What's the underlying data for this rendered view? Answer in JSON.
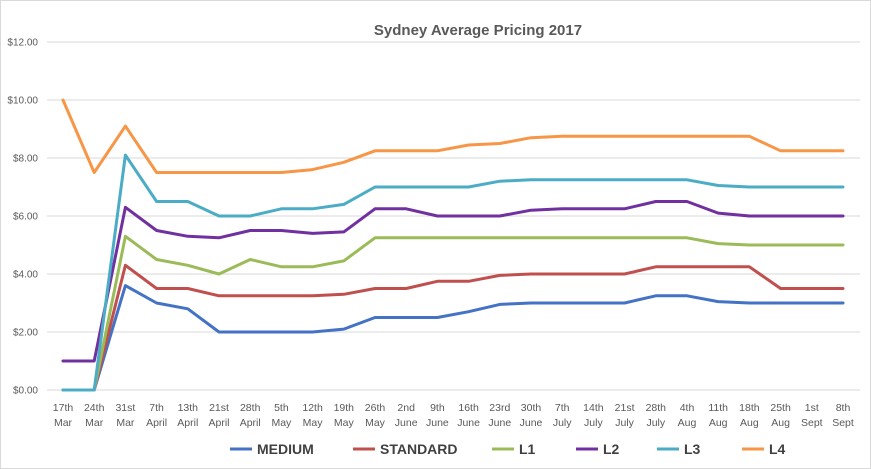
{
  "chart_data": {
    "type": "line",
    "title": "Sydney Average Pricing 2017",
    "xlabel": "",
    "ylabel": "",
    "ylim": [
      0,
      12
    ],
    "yticks": [
      "$0.00",
      "$2.00",
      "$4.00",
      "$6.00",
      "$8.00",
      "$10.00",
      "$12.00"
    ],
    "grid": true,
    "legend_position": "bottom",
    "categories": [
      [
        "17th",
        "Mar"
      ],
      [
        "24th",
        "Mar"
      ],
      [
        "31st",
        "Mar"
      ],
      [
        "7th",
        "April"
      ],
      [
        "13th",
        "April"
      ],
      [
        "21st",
        "April"
      ],
      [
        "28th",
        "April"
      ],
      [
        "5th",
        "May"
      ],
      [
        "12th",
        "May"
      ],
      [
        "19th",
        "May"
      ],
      [
        "26th",
        "May"
      ],
      [
        "2nd",
        "June"
      ],
      [
        "9th",
        "June"
      ],
      [
        "16th",
        "June"
      ],
      [
        "23rd",
        "June"
      ],
      [
        "30th",
        "June"
      ],
      [
        "7th",
        "July"
      ],
      [
        "14th",
        "July"
      ],
      [
        "21st",
        "July"
      ],
      [
        "28th",
        "July"
      ],
      [
        "4th",
        "Aug"
      ],
      [
        "11th",
        "Aug"
      ],
      [
        "18th",
        "Aug"
      ],
      [
        "25th",
        "Aug"
      ],
      [
        "1st",
        "Sept"
      ],
      [
        "8th",
        "Sept"
      ]
    ],
    "series": [
      {
        "name": "MEDIUM",
        "color": "#4472c4",
        "values": [
          0,
          0,
          3.6,
          3.0,
          2.8,
          2.0,
          2.0,
          2.0,
          2.0,
          2.1,
          2.5,
          2.5,
          2.5,
          2.7,
          2.95,
          3.0,
          3.0,
          3.0,
          3.0,
          3.25,
          3.25,
          3.05,
          3.0,
          3.0,
          3.0,
          3.0
        ]
      },
      {
        "name": "STANDARD",
        "color": "#c0504d",
        "values": [
          0,
          0,
          4.3,
          3.5,
          3.5,
          3.25,
          3.25,
          3.25,
          3.25,
          3.3,
          3.5,
          3.5,
          3.75,
          3.75,
          3.95,
          4.0,
          4.0,
          4.0,
          4.0,
          4.25,
          4.25,
          4.25,
          4.25,
          3.5,
          3.5,
          3.5
        ]
      },
      {
        "name": "L1",
        "color": "#9bbb59",
        "values": [
          0,
          0,
          5.3,
          4.5,
          4.3,
          4.0,
          4.5,
          4.25,
          4.25,
          4.45,
          5.25,
          5.25,
          5.25,
          5.25,
          5.25,
          5.25,
          5.25,
          5.25,
          5.25,
          5.25,
          5.25,
          5.05,
          5.0,
          5.0,
          5.0,
          5.0
        ]
      },
      {
        "name": "L2",
        "color": "#7030a0",
        "values": [
          1.0,
          1.0,
          6.3,
          5.5,
          5.3,
          5.25,
          5.5,
          5.5,
          5.4,
          5.45,
          6.25,
          6.25,
          6.0,
          6.0,
          6.0,
          6.2,
          6.25,
          6.25,
          6.25,
          6.5,
          6.5,
          6.1,
          6.0,
          6.0,
          6.0,
          6.0
        ]
      },
      {
        "name": "L3",
        "color": "#4bacc6",
        "values": [
          0,
          0,
          8.1,
          6.5,
          6.5,
          6.0,
          6.0,
          6.25,
          6.25,
          6.4,
          7.0,
          7.0,
          7.0,
          7.0,
          7.2,
          7.25,
          7.25,
          7.25,
          7.25,
          7.25,
          7.25,
          7.05,
          7.0,
          7.0,
          7.0,
          7.0
        ]
      },
      {
        "name": "L4",
        "color": "#f79646",
        "values": [
          10.0,
          7.5,
          9.1,
          7.5,
          7.5,
          7.5,
          7.5,
          7.5,
          7.6,
          7.85,
          8.25,
          8.25,
          8.25,
          8.45,
          8.5,
          8.7,
          8.75,
          8.75,
          8.75,
          8.75,
          8.75,
          8.75,
          8.75,
          8.25,
          8.25,
          8.25
        ]
      }
    ]
  }
}
